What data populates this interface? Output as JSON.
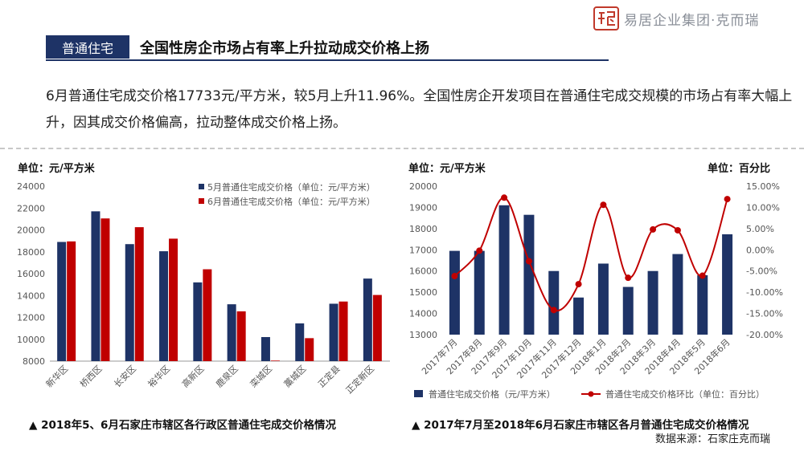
{
  "brand": {
    "logo_icon": "yiju-seal-logo",
    "text": "易居企业集团·克而瑞",
    "color": "#c0392b"
  },
  "header": {
    "tag": "普通住宅",
    "title": "全国性房企市场占有率上升拉动成交价格上扬"
  },
  "intro": "6月普通住宅成交价格17733元/平方米，较5月上升11.96%。全国性房企开发项目在普通住宅成交规模的市场占有率大幅上升，因其成交价格偏高，拉动整体成交价格上扬。",
  "left_unit": "单位：元/平方米",
  "right_unit_left": "单位：元/平方米",
  "right_unit_right": "单位：百分比",
  "caption_left": "▲ 2018年5、6月石家庄市辖区各行政区普通住宅成交价格情况",
  "caption_right": "▲ 2017年7月至2018年6月石家庄市辖区各月普通住宅成交价格情况",
  "source": "数据来源：石家庄克而瑞",
  "colors": {
    "navy": "#1e3366",
    "red": "#c00000"
  },
  "chart_data": [
    {
      "type": "bar",
      "categories": [
        "新华区",
        "桥西区",
        "长安区",
        "裕华区",
        "高新区",
        "鹿泉区",
        "栾城区",
        "藁城区",
        "正定县",
        "正定新区"
      ],
      "series": [
        {
          "name": "5月普通住宅成交价格（单位：元/平方米）",
          "color": "#1e3366",
          "values": [
            18900,
            21700,
            18700,
            18050,
            15200,
            13200,
            10200,
            11450,
            13250,
            15550
          ]
        },
        {
          "name": "6月普通住宅成交价格（单位：元/平方米）",
          "color": "#c00000",
          "values": [
            18950,
            21050,
            20250,
            19200,
            16400,
            12550,
            8050,
            10100,
            13450,
            14050
          ]
        }
      ],
      "ylim": [
        8000,
        24000
      ],
      "yticks": [
        8000,
        10000,
        12000,
        14000,
        16000,
        18000,
        20000,
        22000,
        24000
      ],
      "legend": "top-right"
    },
    {
      "type": "bar+line",
      "categories": [
        "2017年7月",
        "2017年8月",
        "2017年9月",
        "2017年10月",
        "2017年11月",
        "2017年12月",
        "2018年1月",
        "2018年2月",
        "2018年3月",
        "2018年4月",
        "2018年5月",
        "2018年6月"
      ],
      "series": [
        {
          "name": "普通住宅成交价格（元/平方米）",
          "type": "bar",
          "color": "#1e3366",
          "values": [
            16950,
            16950,
            19100,
            18650,
            16000,
            14750,
            16350,
            15250,
            16000,
            16800,
            15800,
            17733
          ]
        },
        {
          "name": "普通住宅成交价格环比（单位：百分比）",
          "type": "line",
          "axis": "right",
          "color": "#c00000",
          "values": [
            -6.2,
            -0.2,
            12.3,
            -2.7,
            -14.2,
            -8.1,
            10.6,
            -6.6,
            4.8,
            4.6,
            -6.1,
            11.96
          ]
        }
      ],
      "ylim": [
        13000,
        20000
      ],
      "yticks": [
        13000,
        14000,
        15000,
        16000,
        17000,
        18000,
        19000,
        20000
      ],
      "y2lim": [
        -20,
        15
      ],
      "y2ticks": [
        "-20.00%",
        "-15.00%",
        "-10.00%",
        "-5.00%",
        "0.00%",
        "5.00%",
        "10.00%",
        "15.00%"
      ],
      "legend": "bottom"
    }
  ]
}
